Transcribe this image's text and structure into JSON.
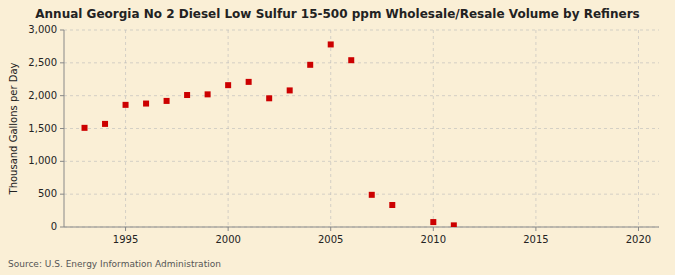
{
  "chart_data": {
    "type": "scatter",
    "title": "Annual Georgia No 2 Diesel Low Sulfur 15-500 ppm Wholesale/Resale Volume by Refiners",
    "y_label": "Thousand Gallons per Day",
    "source": "Source: U.S. Energy Information Administration",
    "x": [
      1993,
      1994,
      1995,
      1996,
      1997,
      1998,
      1999,
      2000,
      2001,
      2002,
      2003,
      2004,
      2005,
      2006,
      2007,
      2008,
      2010,
      2011
    ],
    "values": [
      1510,
      1570,
      1860,
      1880,
      1920,
      2010,
      2020,
      2160,
      2210,
      1960,
      2080,
      2470,
      2780,
      2540,
      490,
      335,
      75,
      25
    ],
    "color": "#cc0000",
    "marker": "square",
    "xlim": [
      1992,
      2021
    ],
    "ylim": [
      0,
      3000
    ],
    "xticks": [
      1995,
      2000,
      2005,
      2010,
      2015,
      2020
    ],
    "yticks": [
      0,
      500,
      {
        "value": 1000,
        "label": "1,000"
      },
      {
        "value": 1500,
        "label": "1,500"
      },
      {
        "value": 2000,
        "label": "2,000"
      },
      {
        "value": 2500,
        "label": "2,500"
      },
      {
        "value": 3000,
        "label": "3,000"
      }
    ],
    "grid": true
  }
}
